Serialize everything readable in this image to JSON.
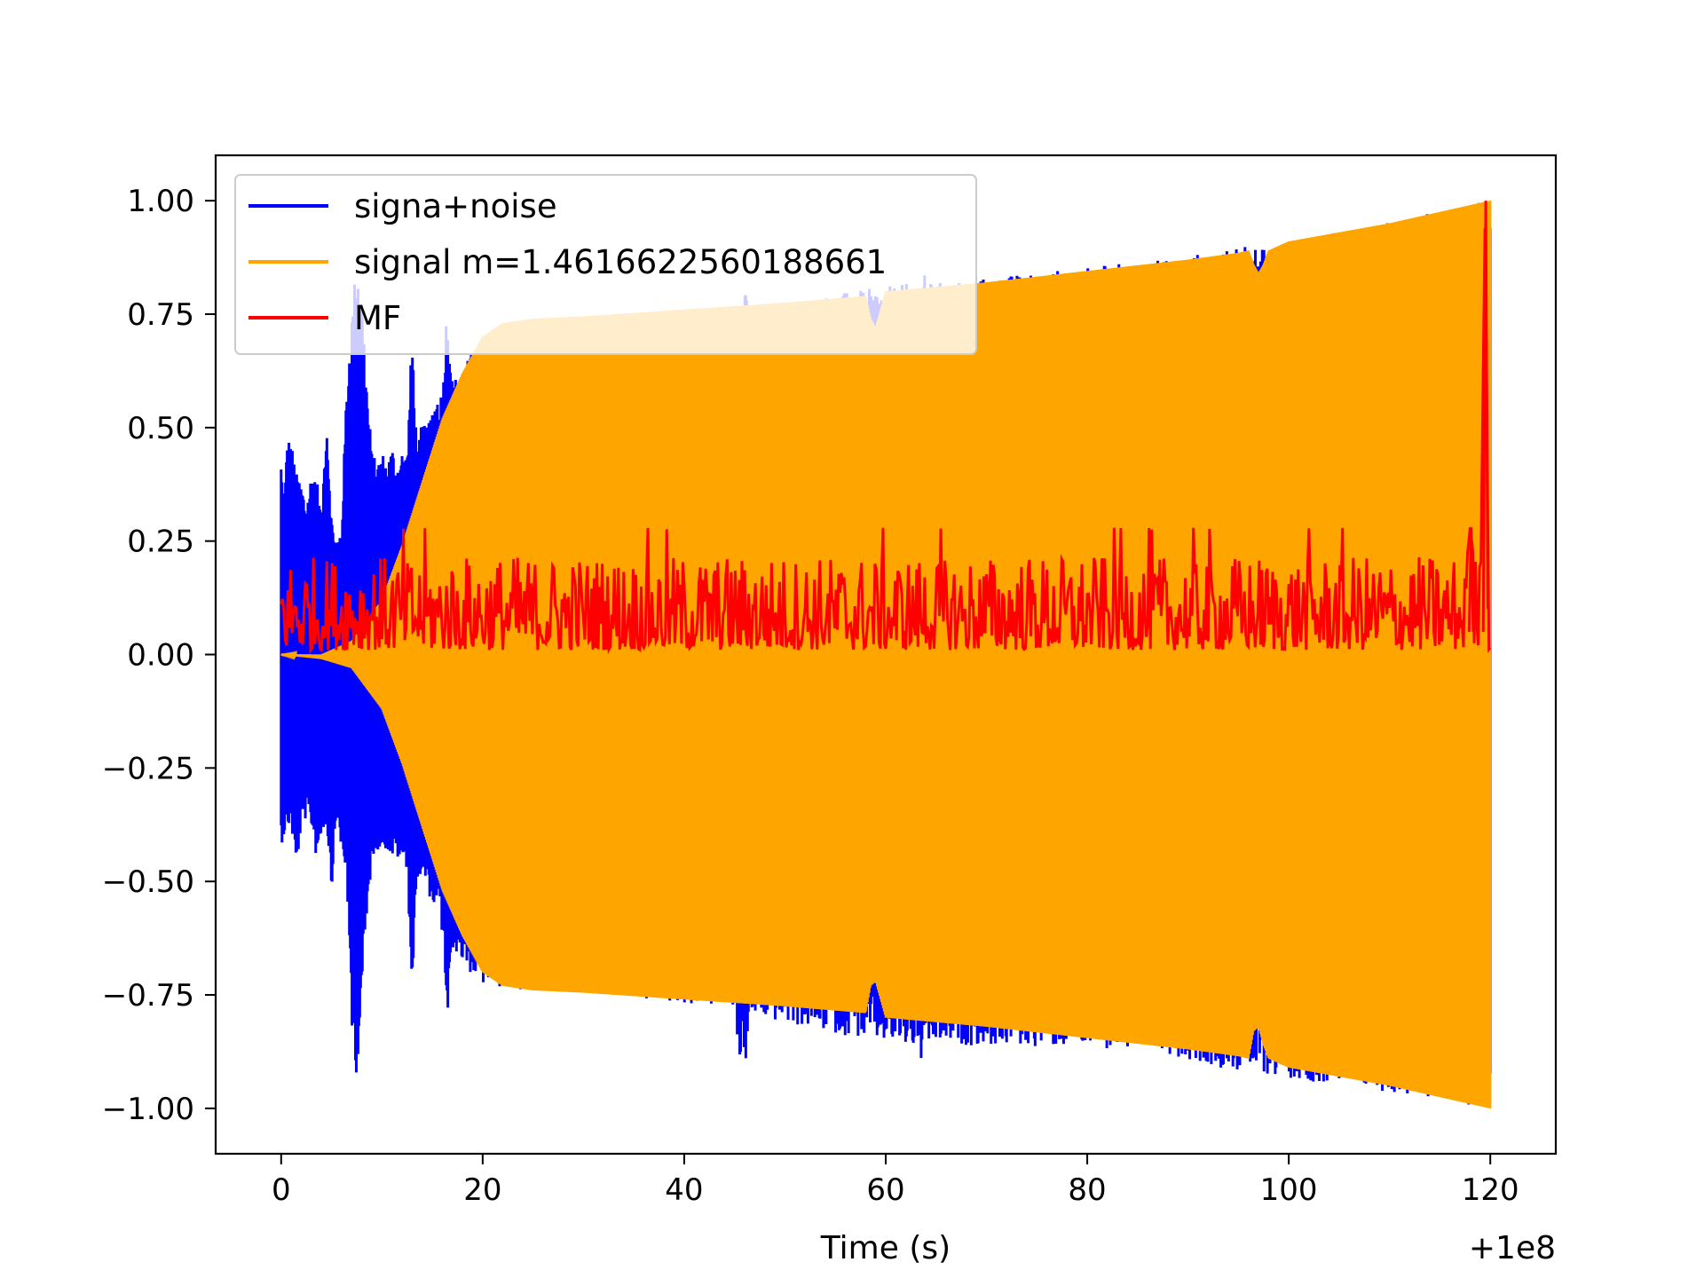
{
  "chart_data": {
    "type": "line",
    "title": "",
    "xlabel": "Time (s)",
    "ylabel": "",
    "x_offset_label": "+1e8",
    "xlim": [
      -6.5,
      126.5
    ],
    "ylim": [
      -1.1,
      1.1
    ],
    "x_ticks": [
      0,
      20,
      40,
      60,
      80,
      100,
      120
    ],
    "x_tick_labels": [
      "0",
      "20",
      "40",
      "60",
      "80",
      "100",
      "120"
    ],
    "y_ticks": [
      1.0,
      0.75,
      0.5,
      0.25,
      0.0,
      -0.25,
      -0.5,
      -0.75,
      -1.0
    ],
    "y_tick_labels": [
      "1.00",
      "0.75",
      "0.50",
      "0.25",
      "0.00",
      "−0.25",
      "−0.50",
      "−0.75",
      "−1.00"
    ],
    "grid": false,
    "legend": {
      "position": "top-left"
    },
    "series": [
      {
        "name": "signa+noise",
        "color": "#0000ff",
        "style": "dense-oscillation",
        "envelope": {
          "x": [
            0,
            0.3,
            0.6,
            1,
            1.5,
            2,
            2.5,
            3,
            3.5,
            4,
            4.5,
            5,
            5.5,
            6,
            6.5,
            7,
            7.5,
            8,
            8.5,
            9,
            9.5,
            10,
            10.5,
            11,
            11.5,
            12,
            12.5,
            13,
            13.5,
            14,
            14.5,
            15,
            15.5,
            16,
            16.5,
            17,
            17.5,
            18,
            19,
            20,
            45,
            45.5,
            46,
            46.5,
            47,
            63,
            63.5,
            64,
            64.5,
            65,
            87,
            87.5,
            88,
            95,
            95.5,
            96,
            120
          ],
          "upper": [
            0.43,
            0.33,
            0.48,
            0.47,
            0.4,
            0.38,
            0.33,
            0.4,
            0.4,
            0.3,
            0.54,
            0.3,
            0.25,
            0.28,
            0.6,
            0.75,
            0.88,
            0.8,
            0.6,
            0.45,
            0.42,
            0.45,
            0.42,
            0.46,
            0.42,
            0.45,
            0.44,
            0.72,
            0.44,
            0.52,
            0.5,
            0.55,
            0.58,
            0.58,
            0.8,
            0.6,
            0.62,
            0.63,
            0.67,
            0.7,
            0.75,
            0.79,
            0.8,
            0.78,
            0.77,
            0.82,
            0.83,
            0.84,
            0.82,
            0.82,
            0.87,
            0.87,
            0.87,
            0.9,
            0.92,
            0.89,
            1.0
          ],
          "lower": [
            -0.42,
            -0.4,
            -0.38,
            -0.38,
            -0.48,
            -0.38,
            -0.36,
            -0.38,
            -0.45,
            -0.4,
            -0.37,
            -0.52,
            -0.35,
            -0.45,
            -0.48,
            -0.85,
            -0.93,
            -0.75,
            -0.6,
            -0.45,
            -0.43,
            -0.43,
            -0.43,
            -0.45,
            -0.45,
            -0.46,
            -0.47,
            -0.76,
            -0.49,
            -0.5,
            -0.52,
            -0.55,
            -0.57,
            -0.62,
            -0.82,
            -0.65,
            -0.66,
            -0.68,
            -0.71,
            -0.73,
            -0.78,
            -0.9,
            -0.92,
            -0.82,
            -0.8,
            -0.87,
            -0.9,
            -0.9,
            -0.86,
            -0.86,
            -0.87,
            -0.89,
            -0.88,
            -0.92,
            -0.9,
            -0.92,
            -1.0
          ]
        }
      },
      {
        "name": "signal m=1.4616622560188661",
        "color": "#ffa500",
        "style": "dense-oscillation",
        "envelope": {
          "x": [
            0,
            4,
            7,
            10,
            12,
            14,
            16,
            18,
            20,
            22,
            25,
            30,
            40,
            50,
            58,
            58.5,
            59,
            59.5,
            60,
            70,
            80,
            90,
            95,
            96,
            96.5,
            97,
            97.5,
            98,
            100,
            110,
            118,
            120
          ],
          "upper": [
            0.0,
            0.0,
            0.03,
            0.12,
            0.24,
            0.38,
            0.52,
            0.62,
            0.7,
            0.73,
            0.74,
            0.745,
            0.76,
            0.775,
            0.79,
            0.74,
            0.72,
            0.76,
            0.8,
            0.82,
            0.845,
            0.87,
            0.885,
            0.89,
            0.86,
            0.84,
            0.86,
            0.89,
            0.91,
            0.95,
            0.99,
            1.0
          ],
          "lower": [
            0.0,
            -0.01,
            -0.03,
            -0.12,
            -0.24,
            -0.38,
            -0.52,
            -0.62,
            -0.7,
            -0.73,
            -0.74,
            -0.745,
            -0.76,
            -0.775,
            -0.79,
            -0.73,
            -0.72,
            -0.76,
            -0.8,
            -0.82,
            -0.845,
            -0.87,
            -0.885,
            -0.89,
            -0.83,
            -0.82,
            -0.86,
            -0.89,
            -0.91,
            -0.95,
            -0.99,
            -1.0
          ]
        }
      },
      {
        "name": "MF",
        "color": "#ff0000",
        "style": "noisy-line",
        "baseline": 0.07,
        "noise_range": [
          0.01,
          0.22
        ],
        "x": [
          0,
          20,
          40,
          60,
          80,
          100,
          117,
          118,
          119,
          119.5,
          119.8,
          120
        ],
        "y": [
          0.07,
          0.08,
          0.07,
          0.08,
          0.07,
          0.08,
          0.06,
          0.28,
          0.08,
          1.0,
          0.15,
          0.04
        ]
      }
    ]
  }
}
